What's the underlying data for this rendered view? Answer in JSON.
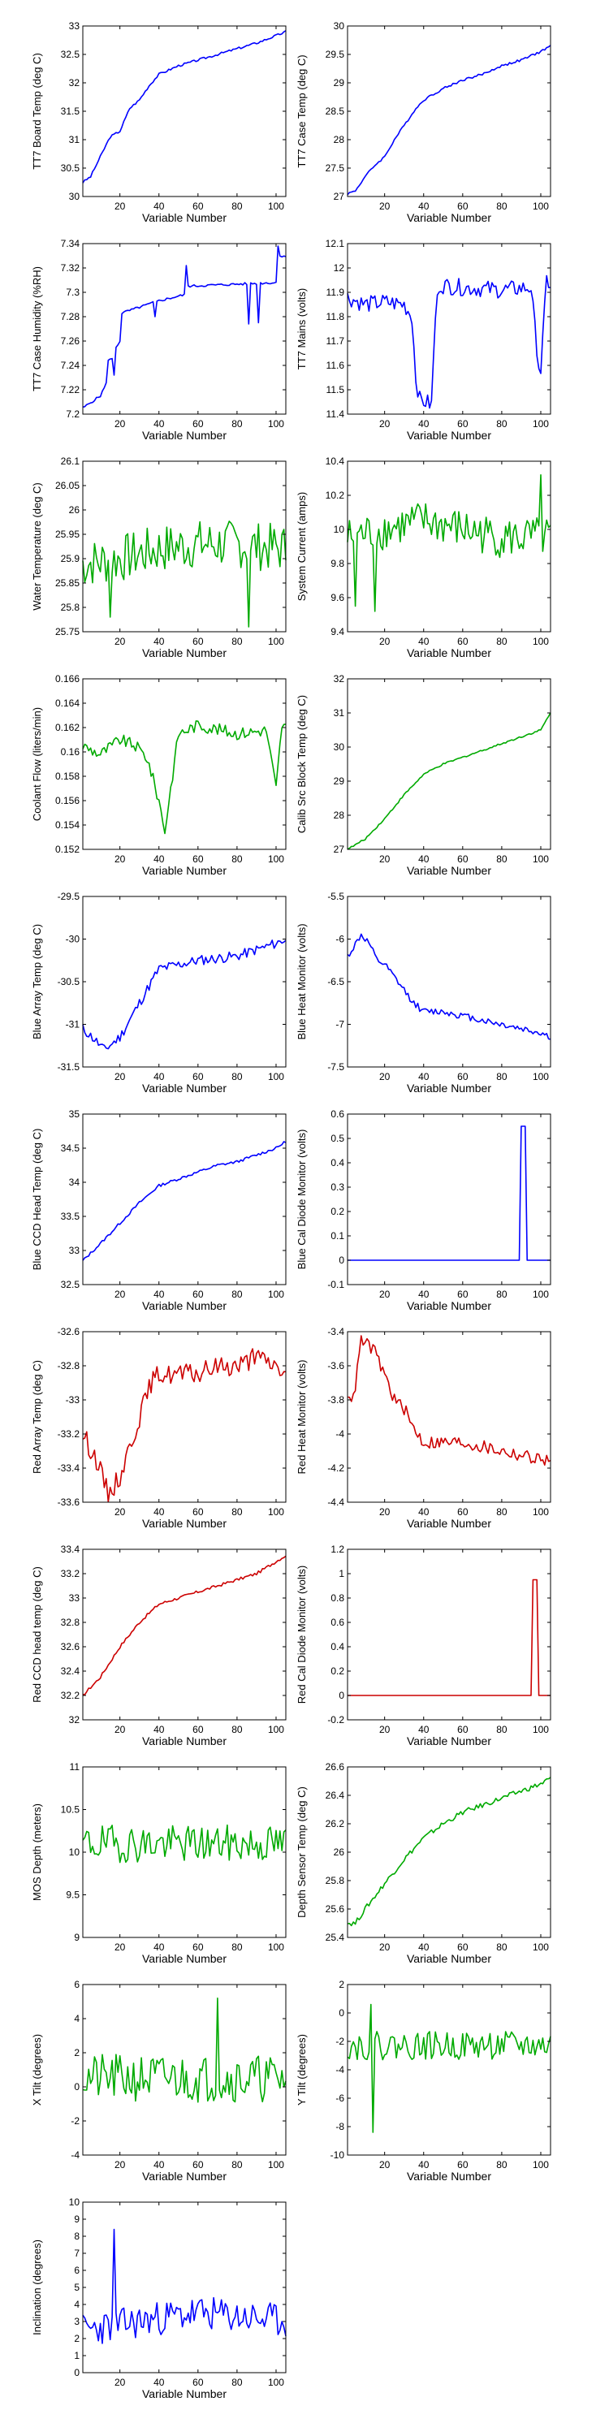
{
  "chart_data": [
    {
      "type": "line",
      "ylabel": "TT7 Board Temp (deg C)",
      "xlabel": "Variable Number",
      "color": "#0000ff",
      "xlim": [
        1,
        105
      ],
      "ylim": [
        30,
        33
      ],
      "yticks": [
        "30",
        "30.5",
        "31",
        "31.5",
        "32",
        "32.5",
        "33"
      ],
      "xticks": [
        "20",
        "40",
        "60",
        "80",
        "100"
      ],
      "x": [
        1,
        5,
        10,
        15,
        20,
        25,
        30,
        35,
        40,
        50,
        60,
        70,
        80,
        90,
        100,
        105
      ],
      "y": [
        30.25,
        30.35,
        30.7,
        31.05,
        31.15,
        31.55,
        31.7,
        31.95,
        32.15,
        32.3,
        32.4,
        32.5,
        32.6,
        32.7,
        32.83,
        32.9
      ],
      "noise": 0.02,
      "spikes": []
    },
    {
      "type": "line",
      "ylabel": "TT7 Case Temp (deg C)",
      "xlabel": "Variable Number",
      "color": "#0000ff",
      "xlim": [
        1,
        105
      ],
      "ylim": [
        27,
        30
      ],
      "yticks": [
        "27",
        "27.5",
        "28",
        "28.5",
        "29",
        "29.5",
        "30"
      ],
      "xticks": [
        "20",
        "40",
        "60",
        "80",
        "100"
      ],
      "x": [
        1,
        5,
        10,
        15,
        20,
        25,
        30,
        35,
        40,
        50,
        60,
        70,
        80,
        90,
        100,
        105
      ],
      "y": [
        27.05,
        27.1,
        27.35,
        27.55,
        27.7,
        28.0,
        28.25,
        28.5,
        28.7,
        28.9,
        29.05,
        29.15,
        29.3,
        29.4,
        29.55,
        29.65
      ],
      "noise": 0.02,
      "spikes": []
    },
    {
      "type": "line",
      "ylabel": "TT7 Case Humidity (%RH)",
      "xlabel": "Variable Number",
      "color": "#0000ff",
      "xlim": [
        1,
        105
      ],
      "ylim": [
        7.2,
        7.34
      ],
      "yticks": [
        "7.2",
        "7.22",
        "7.24",
        "7.26",
        "7.28",
        "7.3",
        "7.32",
        "7.34"
      ],
      "xticks": [
        "20",
        "40",
        "60",
        "80",
        "100"
      ],
      "x": [
        1,
        10,
        13,
        14,
        17,
        18,
        20,
        21,
        40,
        53,
        54,
        100,
        102,
        105
      ],
      "y": [
        7.205,
        7.215,
        7.225,
        7.245,
        7.245,
        7.255,
        7.26,
        7.283,
        7.293,
        7.298,
        7.305,
        7.308,
        7.33,
        7.33
      ],
      "noise": 0.001,
      "spikes": [
        [
          17,
          7.232
        ],
        [
          38,
          7.28
        ],
        [
          54,
          7.322
        ],
        [
          86,
          7.274
        ],
        [
          91,
          7.275
        ],
        [
          101,
          7.338
        ]
      ]
    },
    {
      "type": "line",
      "ylabel": "TT7 Mains  (volts)",
      "xlabel": "Variable Number",
      "color": "#0000ff",
      "xlim": [
        1,
        105
      ],
      "ylim": [
        11.4,
        12.1
      ],
      "yticks": [
        "11.4",
        "11.5",
        "11.6",
        "11.7",
        "11.8",
        "11.9",
        "12",
        "12.1"
      ],
      "xticks": [
        "20",
        "40",
        "60",
        "80",
        "100"
      ],
      "x": [
        1,
        10,
        20,
        30,
        34,
        36,
        38,
        44,
        46,
        48,
        60,
        80,
        95,
        97,
        99,
        100,
        103,
        105
      ],
      "y": [
        11.88,
        11.85,
        11.86,
        11.85,
        11.8,
        11.55,
        11.46,
        11.44,
        11.8,
        11.93,
        11.92,
        11.91,
        11.92,
        11.75,
        11.6,
        11.58,
        11.95,
        11.93
      ],
      "noise": 0.035,
      "spikes": []
    },
    {
      "type": "line",
      "ylabel": "Water Temperature (deg C)",
      "xlabel": "Variable Number",
      "color": "#00aa00",
      "xlim": [
        1,
        105
      ],
      "ylim": [
        25.75,
        26.1
      ],
      "yticks": [
        "25.75",
        "25.8",
        "25.85",
        "25.9",
        "25.95",
        "26",
        "26.05",
        "26.1"
      ],
      "xticks": [
        "20",
        "40",
        "60",
        "80",
        "100"
      ],
      "x": [
        1,
        20,
        40,
        60,
        80,
        105
      ],
      "y": [
        25.89,
        25.9,
        25.92,
        25.93,
        25.93,
        25.92
      ],
      "noise": 0.05,
      "spikes": [
        [
          15,
          25.78
        ],
        [
          86,
          25.76
        ]
      ]
    },
    {
      "type": "line",
      "ylabel": "System Current (amps)",
      "xlabel": "Variable Number",
      "color": "#00aa00",
      "xlim": [
        1,
        105
      ],
      "ylim": [
        9.4,
        10.4
      ],
      "yticks": [
        "9.4",
        "9.6",
        "9.8",
        "10",
        "10.2",
        "10.4"
      ],
      "xticks": [
        "20",
        "40",
        "60",
        "80",
        "100"
      ],
      "x": [
        1,
        20,
        40,
        60,
        80,
        105
      ],
      "y": [
        9.95,
        10.0,
        10.05,
        10.0,
        9.95,
        9.95
      ],
      "noise": 0.12,
      "spikes": [
        [
          5,
          9.55
        ],
        [
          15,
          9.52
        ],
        [
          100,
          10.32
        ]
      ]
    },
    {
      "type": "line",
      "ylabel": "Coolant Flow (liters/min)",
      "xlabel": "Variable Number",
      "color": "#00aa00",
      "xlim": [
        1,
        105
      ],
      "ylim": [
        0.152,
        0.166
      ],
      "yticks": [
        "0.152",
        "0.154",
        "0.156",
        "0.158",
        "0.16",
        "0.162",
        "0.164",
        "0.166"
      ],
      "xticks": [
        "20",
        "40",
        "60",
        "80",
        "100"
      ],
      "x": [
        1,
        10,
        20,
        28,
        34,
        40,
        43,
        46,
        50,
        60,
        80,
        95,
        100,
        103,
        105
      ],
      "y": [
        0.1605,
        0.1598,
        0.161,
        0.1605,
        0.1595,
        0.156,
        0.1535,
        0.157,
        0.1615,
        0.1622,
        0.1615,
        0.1618,
        0.157,
        0.1622,
        0.162
      ],
      "noise": 0.0005,
      "spikes": []
    },
    {
      "type": "line",
      "ylabel": "Calib Src Block Temp (deg C)",
      "xlabel": "Variable Number",
      "color": "#00aa00",
      "xlim": [
        1,
        105
      ],
      "ylim": [
        27,
        32
      ],
      "yticks": [
        "27",
        "28",
        "29",
        "30",
        "31",
        "32"
      ],
      "xticks": [
        "20",
        "40",
        "60",
        "80",
        "100"
      ],
      "x": [
        1,
        10,
        20,
        30,
        40,
        50,
        60,
        70,
        80,
        90,
        100,
        103,
        105
      ],
      "y": [
        27.0,
        27.3,
        27.9,
        28.6,
        29.2,
        29.5,
        29.7,
        29.9,
        30.1,
        30.3,
        30.5,
        30.8,
        31.0
      ],
      "noise": 0.025,
      "spikes": []
    },
    {
      "type": "line",
      "ylabel": "Blue Array Temp (deg C)",
      "xlabel": "Variable Number",
      "color": "#0000ff",
      "xlim": [
        1,
        105
      ],
      "ylim": [
        -31.5,
        -29.5
      ],
      "yticks": [
        "-31.5",
        "-31",
        "-30.5",
        "-30",
        "-29.5"
      ],
      "xticks": [
        "20",
        "40",
        "60",
        "80",
        "100"
      ],
      "x": [
        1,
        8,
        12,
        20,
        30,
        40,
        50,
        60,
        80,
        100,
        105
      ],
      "y": [
        -31.05,
        -31.2,
        -31.3,
        -31.15,
        -30.75,
        -30.35,
        -30.3,
        -30.25,
        -30.2,
        -30.05,
        -30.0
      ],
      "noise": 0.06,
      "spikes": []
    },
    {
      "type": "line",
      "ylabel": "Blue Heat Monitor (volts)",
      "xlabel": "Variable Number",
      "color": "#0000ff",
      "xlim": [
        1,
        105
      ],
      "ylim": [
        -7.5,
        -5.5
      ],
      "yticks": [
        "-7.5",
        "-7",
        "-6.5",
        "-6",
        "-5.5"
      ],
      "xticks": [
        "20",
        "40",
        "60",
        "80",
        "100"
      ],
      "x": [
        1,
        4,
        8,
        12,
        16,
        20,
        25,
        30,
        35,
        40,
        50,
        60,
        70,
        80,
        90,
        100,
        105
      ],
      "y": [
        -6.2,
        -6.1,
        -5.95,
        -6.05,
        -6.25,
        -6.3,
        -6.45,
        -6.6,
        -6.75,
        -6.85,
        -6.85,
        -6.9,
        -6.95,
        -7.0,
        -7.05,
        -7.1,
        -7.15
      ],
      "noise": 0.04,
      "spikes": []
    },
    {
      "type": "line",
      "ylabel": "Blue CCD Head Temp (deg C)",
      "xlabel": "Variable Number",
      "color": "#0000ff",
      "xlim": [
        1,
        105
      ],
      "ylim": [
        32.5,
        35
      ],
      "yticks": [
        "32.5",
        "33",
        "33.5",
        "34",
        "34.5",
        "35"
      ],
      "xticks": [
        "20",
        "40",
        "60",
        "80",
        "100"
      ],
      "x": [
        1,
        10,
        20,
        30,
        40,
        50,
        60,
        70,
        80,
        90,
        100,
        105
      ],
      "y": [
        32.85,
        33.1,
        33.4,
        33.7,
        33.95,
        34.05,
        34.15,
        34.25,
        34.3,
        34.4,
        34.5,
        34.6
      ],
      "noise": 0.02,
      "spikes": []
    },
    {
      "type": "line",
      "ylabel": "Blue Cal Diode Monitor (volts)",
      "xlabel": "Variable Number",
      "color": "#0000ff",
      "xlim": [
        1,
        105
      ],
      "ylim": [
        -0.1,
        0.6
      ],
      "yticks": [
        "-0.1",
        "0",
        "0.1",
        "0.2",
        "0.3",
        "0.4",
        "0.5",
        "0.6"
      ],
      "xticks": [
        "20",
        "40",
        "60",
        "80",
        "100"
      ],
      "x": [
        1,
        89,
        90,
        92,
        93,
        105
      ],
      "y": [
        0.0,
        0.0,
        0.55,
        0.55,
        0.0,
        0.0
      ],
      "noise": 0.0,
      "spikes": []
    },
    {
      "type": "line",
      "ylabel": "Red Array Temp (deg C)",
      "xlabel": "Variable Number",
      "color": "#cc0000",
      "xlim": [
        1,
        105
      ],
      "ylim": [
        -33.6,
        -32.6
      ],
      "yticks": [
        "-33.6",
        "-33.4",
        "-33.2",
        "-33",
        "-32.8",
        "-32.6"
      ],
      "xticks": [
        "20",
        "40",
        "60",
        "80",
        "100"
      ],
      "x": [
        1,
        8,
        14,
        20,
        30,
        36,
        40,
        50,
        60,
        70,
        80,
        90,
        100,
        105
      ],
      "y": [
        -33.2,
        -33.35,
        -33.55,
        -33.45,
        -33.1,
        -32.9,
        -32.85,
        -32.85,
        -32.85,
        -32.8,
        -32.8,
        -32.75,
        -32.8,
        -32.85
      ],
      "noise": 0.06,
      "spikes": []
    },
    {
      "type": "line",
      "ylabel": "Red Heat Monitor (volts)",
      "xlabel": "Variable Number",
      "color": "#cc0000",
      "xlim": [
        1,
        105
      ],
      "ylim": [
        -4.4,
        -3.4
      ],
      "yticks": [
        "-4.4",
        "-4.2",
        "-4",
        "-3.8",
        "-3.6",
        "-3.4"
      ],
      "xticks": [
        "20",
        "40",
        "60",
        "80",
        "100"
      ],
      "x": [
        1,
        4,
        8,
        14,
        20,
        25,
        30,
        34,
        40,
        50,
        60,
        80,
        100,
        105
      ],
      "y": [
        -3.75,
        -3.8,
        -3.45,
        -3.5,
        -3.65,
        -3.8,
        -3.85,
        -3.95,
        -4.05,
        -4.05,
        -4.05,
        -4.1,
        -4.15,
        -4.15
      ],
      "noise": 0.04,
      "spikes": []
    },
    {
      "type": "line",
      "ylabel": "Red CCD head temp (deg C)",
      "xlabel": "Variable Number",
      "color": "#cc0000",
      "xlim": [
        1,
        105
      ],
      "ylim": [
        32,
        33.4
      ],
      "yticks": [
        "32",
        "32.2",
        "32.4",
        "32.6",
        "32.8",
        "33",
        "33.2",
        "33.4"
      ],
      "xticks": [
        "20",
        "40",
        "60",
        "80",
        "100"
      ],
      "x": [
        1,
        10,
        20,
        30,
        40,
        50,
        60,
        70,
        80,
        90,
        100,
        105
      ],
      "y": [
        32.2,
        32.35,
        32.6,
        32.8,
        32.95,
        33.0,
        33.05,
        33.1,
        33.15,
        33.2,
        33.3,
        33.35
      ],
      "noise": 0.012,
      "spikes": []
    },
    {
      "type": "line",
      "ylabel": "Red Cal Diode Monitor (volts)",
      "xlabel": "Variable Number",
      "color": "#cc0000",
      "xlim": [
        1,
        105
      ],
      "ylim": [
        -0.2,
        1.2
      ],
      "yticks": [
        "-0.2",
        "0",
        "0.2",
        "0.4",
        "0.6",
        "0.8",
        "1",
        "1.2"
      ],
      "xticks": [
        "20",
        "40",
        "60",
        "80",
        "100"
      ],
      "x": [
        1,
        95,
        96,
        98,
        99,
        105
      ],
      "y": [
        0.0,
        0.0,
        0.95,
        0.95,
        0.0,
        0.0
      ],
      "noise": 0.0,
      "spikes": []
    },
    {
      "type": "line",
      "ylabel": "MOS Depth  (meters)",
      "xlabel": "Variable Number",
      "color": "#00aa00",
      "xlim": [
        1,
        105
      ],
      "ylim": [
        9,
        11
      ],
      "yticks": [
        "9",
        "9.5",
        "10",
        "10.5",
        "11"
      ],
      "xticks": [
        "20",
        "40",
        "60",
        "80",
        "100"
      ],
      "x": [
        1,
        105
      ],
      "y": [
        10.1,
        10.1
      ],
      "noise": 0.22,
      "spikes": []
    },
    {
      "type": "line",
      "ylabel": "Depth Sensor Temp (deg C)",
      "xlabel": "Variable Number",
      "color": "#00aa00",
      "xlim": [
        1,
        105
      ],
      "ylim": [
        25.4,
        26.6
      ],
      "yticks": [
        "25.4",
        "25.6",
        "25.8",
        "26",
        "26.2",
        "26.4",
        "26.6"
      ],
      "xticks": [
        "20",
        "40",
        "60",
        "80",
        "100"
      ],
      "x": [
        1,
        5,
        10,
        20,
        30,
        40,
        50,
        60,
        70,
        80,
        90,
        100,
        105
      ],
      "y": [
        25.5,
        25.5,
        25.6,
        25.78,
        25.95,
        26.1,
        26.2,
        26.28,
        26.33,
        26.38,
        26.43,
        26.48,
        26.52
      ],
      "noise": 0.018,
      "spikes": []
    },
    {
      "type": "line",
      "ylabel": "X Tilt  (degrees)",
      "xlabel": "Variable Number",
      "color": "#00aa00",
      "xlim": [
        1,
        105
      ],
      "ylim": [
        -4,
        6
      ],
      "yticks": [
        "-4",
        "-2",
        "0",
        "2",
        "4",
        "6"
      ],
      "xticks": [
        "20",
        "40",
        "60",
        "80",
        "100"
      ],
      "x": [
        1,
        105
      ],
      "y": [
        0.5,
        0.5
      ],
      "noise": 1.4,
      "spikes": [
        [
          70,
          5.2
        ]
      ]
    },
    {
      "type": "line",
      "ylabel": "Y Tilt  (degrees)",
      "xlabel": "Variable Number",
      "color": "#00aa00",
      "xlim": [
        1,
        105
      ],
      "ylim": [
        -10,
        2
      ],
      "yticks": [
        "-10",
        "-8",
        "-6",
        "-4",
        "-2",
        "0",
        "2"
      ],
      "xticks": [
        "20",
        "40",
        "60",
        "80",
        "100"
      ],
      "x": [
        1,
        105
      ],
      "y": [
        -2.3,
        -2.3
      ],
      "noise": 1.0,
      "spikes": [
        [
          14,
          -8.4
        ],
        [
          13,
          0.6
        ]
      ]
    },
    {
      "type": "line",
      "ylabel": "Inclination  (degrees)",
      "xlabel": "Variable Number",
      "color": "#0000ff",
      "xlim": [
        1,
        105
      ],
      "ylim": [
        0,
        10
      ],
      "yticks": [
        "0",
        "1",
        "2",
        "3",
        "4",
        "5",
        "6",
        "7",
        "8",
        "9",
        "10"
      ],
      "xticks": [
        "20",
        "40",
        "60",
        "80",
        "100"
      ],
      "x": [
        1,
        20,
        40,
        60,
        80,
        105
      ],
      "y": [
        2.5,
        2.8,
        3.2,
        3.5,
        3.3,
        3.0
      ],
      "noise": 1.0,
      "spikes": [
        [
          17,
          8.4
        ]
      ]
    }
  ]
}
